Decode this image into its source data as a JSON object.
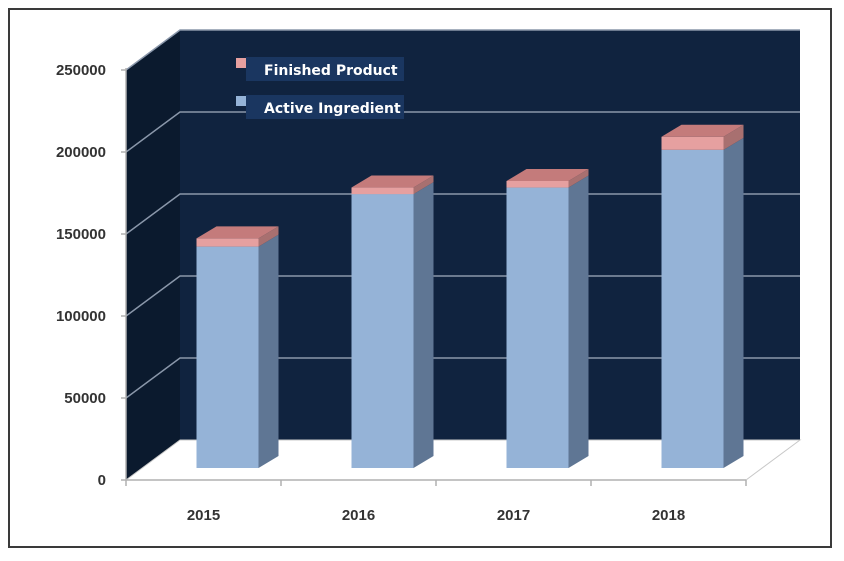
{
  "chart_data": {
    "type": "bar",
    "stacked": true,
    "three_d": true,
    "categories": [
      "2015",
      "2016",
      "2017",
      "2018"
    ],
    "series": [
      {
        "name": "Active Ingredient",
        "values": [
          135000,
          167000,
          171000,
          194000
        ],
        "color": "#95b3d7"
      },
      {
        "name": "Finished Product",
        "values": [
          5000,
          4000,
          4000,
          8000
        ],
        "color": "#e6a0a0"
      }
    ],
    "title": "",
    "xlabel": "",
    "ylabel": "",
    "ylim": [
      0,
      250000
    ],
    "yticks": [
      "0",
      "50000",
      "100000",
      "150000",
      "200000",
      "250000"
    ],
    "grid": true,
    "legend_position": "top-left",
    "colors": {
      "back_wall": "#10233f",
      "side_wall": "#0b1a2e",
      "gridline": "#8a97aa",
      "legend_bg": "#1a3660"
    }
  }
}
